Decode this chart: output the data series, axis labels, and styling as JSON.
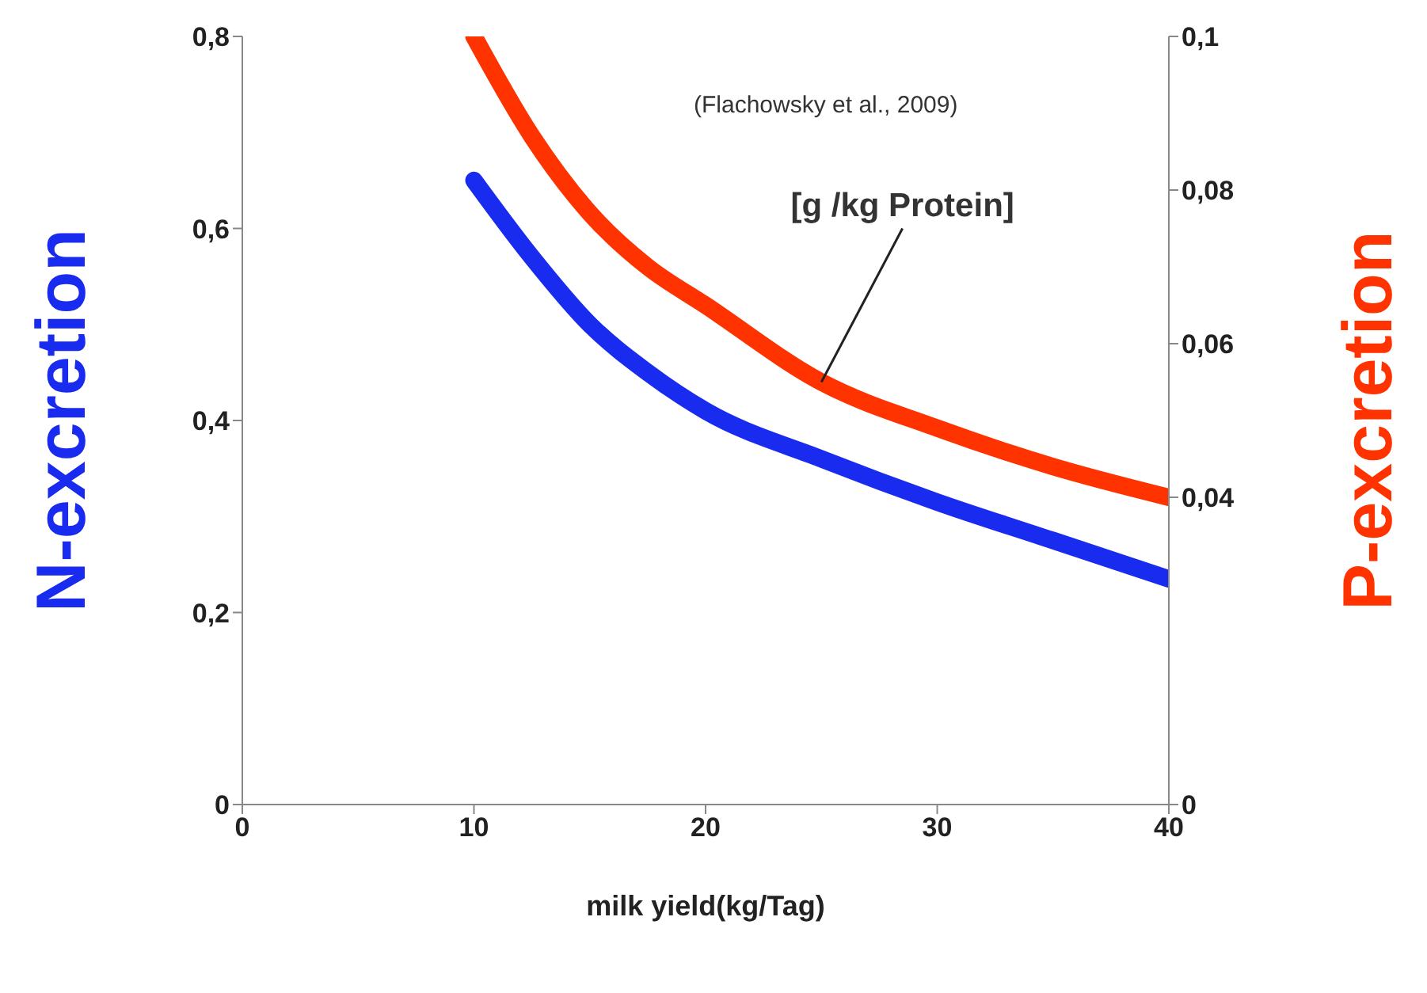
{
  "chart_data": {
    "type": "line",
    "xlabel": "milk yield(kg/Tag)",
    "ylabel": "N-excretion",
    "y2label": "P-excretion",
    "annotations": [
      "(Flachowsky et al., 2009)",
      {
        "text": "[g /kg Protein]",
        "x": 25,
        "y": 0.44
      }
    ],
    "x": [
      10,
      12.5,
      15,
      17.5,
      20,
      25,
      30,
      35,
      40
    ],
    "series": [
      {
        "color": "#1a2bf0",
        "values": [
          0.65,
          0.57,
          0.5,
          0.45,
          0.41,
          0.36,
          0.315,
          0.275,
          0.235
        ]
      },
      {
        "color": "#ff3300",
        "axis": "y2",
        "values": [
          0.1,
          0.087,
          0.077,
          0.07,
          0.065,
          0.055,
          0.049,
          0.044,
          0.04
        ]
      }
    ],
    "xlim": [
      0,
      40
    ],
    "xticks": [
      0,
      10,
      20,
      30,
      40
    ],
    "ylim": [
      0,
      0.8
    ],
    "yticks": [
      {
        "value": 0,
        "label": "0"
      },
      {
        "value": 0.2,
        "label": "0,2"
      },
      {
        "value": 0.4,
        "label": "0,4"
      },
      {
        "value": 0.6,
        "label": "0,6"
      },
      {
        "value": 0.8,
        "label": "0,8"
      }
    ],
    "y2lim": [
      0,
      0.1
    ],
    "y2ticks": [
      {
        "value": 0,
        "label": "0"
      },
      {
        "value": 0.04,
        "label": "0,04"
      },
      {
        "value": 0.06,
        "label": "0,06"
      },
      {
        "value": 0.08,
        "label": "0,08"
      },
      {
        "value": 0.1,
        "label": "0,1"
      }
    ],
    "marker": "none",
    "line_style": "solid"
  }
}
